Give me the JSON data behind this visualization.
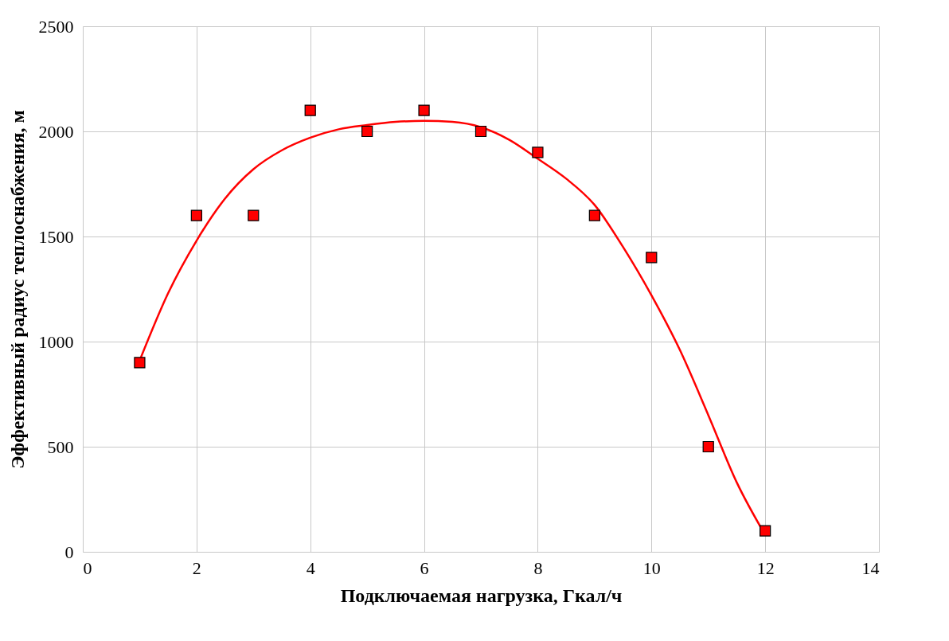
{
  "chart_data": {
    "type": "scatter",
    "xlabel": "Подключаемая нагрузка, Гкал/ч",
    "ylabel": "Эффективный  радиус теплоснабжения, м",
    "x": [
      1,
      2,
      3,
      4,
      5,
      6,
      7,
      8,
      9,
      10,
      11,
      12
    ],
    "series": [
      {
        "type": "line",
        "marker": "none",
        "color": "#ff0000",
        "x": [
          1,
          1.5,
          2,
          2.5,
          3,
          3.5,
          4,
          4.5,
          5,
          5.5,
          6,
          6.5,
          7,
          7.5,
          8,
          8.5,
          9,
          9.5,
          10,
          10.5,
          11,
          11.5,
          12
        ],
        "values": [
          910,
          1230,
          1480,
          1680,
          1820,
          1910,
          1970,
          2010,
          2030,
          2045,
          2050,
          2045,
          2020,
          1960,
          1870,
          1775,
          1650,
          1450,
          1220,
          960,
          650,
          330,
          80
        ]
      },
      {
        "color": "#ff0000",
        "values": [
          900,
          1600,
          1600,
          2100,
          2000,
          2100,
          2000,
          1900,
          1600,
          1400,
          500,
          100
        ]
      }
    ],
    "xlim": [
      0,
      14
    ],
    "xticks": [
      0,
      2,
      4,
      6,
      8,
      10,
      12,
      14
    ],
    "ylim": [
      0,
      2500
    ],
    "yticks": [
      0,
      500,
      1000,
      1500,
      2000,
      2500
    ],
    "grid": true,
    "marker": "square",
    "line_style": "solid"
  }
}
